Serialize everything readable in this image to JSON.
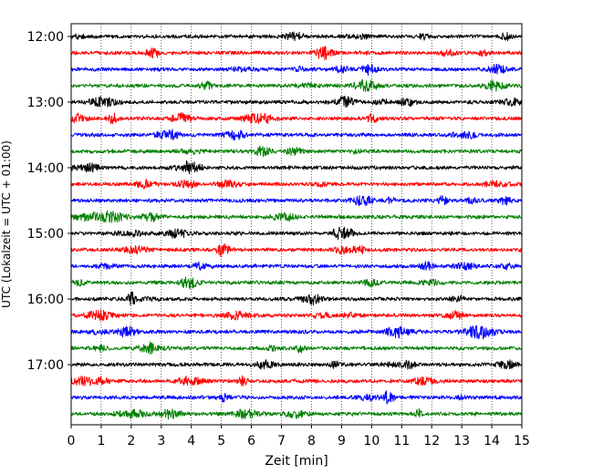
{
  "chart_data": {
    "type": "line",
    "title": "",
    "xlabel": "Zeit  [min]",
    "ylabel": "UTC (Lokalzeit = UTC + 01:00)",
    "xlim": [
      0,
      15
    ],
    "x_ticks": [
      "0",
      "1",
      "2",
      "3",
      "4",
      "5",
      "6",
      "7",
      "8",
      "9",
      "10",
      "11",
      "12",
      "13",
      "14",
      "15"
    ],
    "y_ticks": [
      "12:00",
      "13:00",
      "14:00",
      "15:00",
      "16:00",
      "17:00"
    ],
    "row_interval_minutes": 15,
    "start_time": "12:00",
    "row_count": 24,
    "trace_colors": [
      "#000000",
      "#ff0000",
      "#0000ff",
      "#007f00"
    ],
    "grid_x": true,
    "grid_style": "dotted"
  }
}
